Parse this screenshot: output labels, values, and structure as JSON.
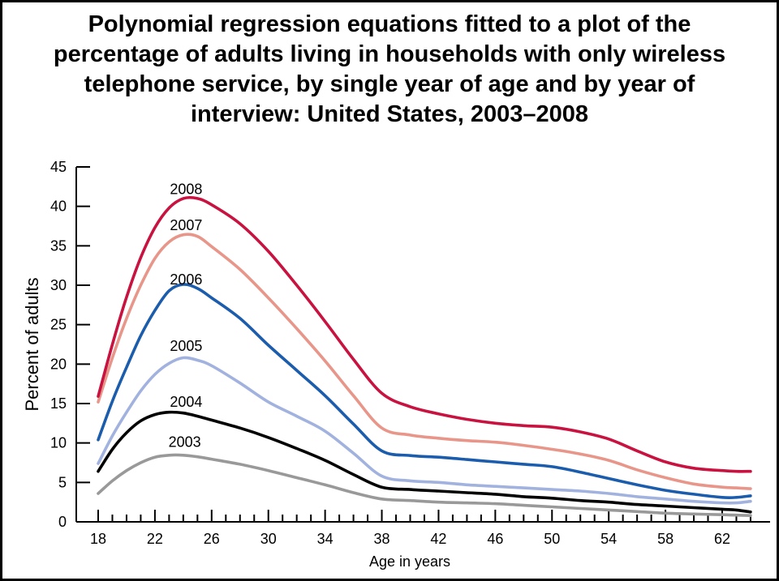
{
  "title": {
    "lines": [
      "Polynomial regression equations fitted to a plot of the",
      "percentage of adults living in households with only wireless",
      "telephone service, by single year of age and by year of",
      "interview: United States, 2003–2008"
    ]
  },
  "chart_data": {
    "type": "line",
    "title": "Polynomial regression equations fitted to a plot of the percentage of adults living in households with only wireless telephone service, by single year of age and by year of interview: United States, 2003–2008",
    "xlabel": "Age in years",
    "ylabel": "Percent of adults",
    "xlim": [
      18,
      64
    ],
    "ylim": [
      0,
      45
    ],
    "grid": false,
    "legend_position": "inline-labels-above-curves",
    "y_ticks": [
      0,
      5,
      10,
      15,
      20,
      25,
      30,
      35,
      40,
      45
    ],
    "x_major_ticks": [
      18,
      22,
      26,
      30,
      34,
      38,
      42,
      46,
      50,
      54,
      58,
      62
    ],
    "x_minor_tick_step": 1,
    "x": [
      18,
      19,
      20,
      21,
      22,
      23,
      24,
      25,
      26,
      28,
      30,
      32,
      34,
      36,
      38,
      40,
      42,
      44,
      46,
      48,
      50,
      52,
      54,
      56,
      58,
      60,
      62,
      63,
      64
    ],
    "series": [
      {
        "name": "2008",
        "color": "#C81240",
        "label_age": 24.2,
        "label_value": 42.2,
        "values": [
          15.9,
          22.5,
          28.5,
          33.5,
          37.3,
          39.8,
          41.0,
          41.0,
          40.2,
          37.8,
          34.3,
          30.0,
          25.4,
          20.6,
          16.3,
          14.6,
          13.7,
          13.0,
          12.5,
          12.2,
          12.0,
          11.4,
          10.5,
          9.0,
          7.6,
          6.8,
          6.5,
          6.4,
          6.4
        ]
      },
      {
        "name": "2007",
        "color": "#E89689",
        "label_age": 24.2,
        "label_value": 37.6,
        "values": [
          15.2,
          20.8,
          25.8,
          30.0,
          33.4,
          35.5,
          36.4,
          36.2,
          34.9,
          32.0,
          28.4,
          24.5,
          20.4,
          16.0,
          11.9,
          11.0,
          10.6,
          10.3,
          10.1,
          9.7,
          9.2,
          8.6,
          7.8,
          6.6,
          5.6,
          4.8,
          4.4,
          4.3,
          4.2
        ]
      },
      {
        "name": "2006",
        "color": "#1B5DAC",
        "label_age": 24.2,
        "label_value": 30.7,
        "values": [
          10.4,
          15.3,
          19.6,
          23.6,
          26.8,
          29.3,
          30.1,
          29.6,
          28.4,
          25.8,
          22.4,
          19.2,
          16.0,
          12.4,
          9.0,
          8.4,
          8.2,
          7.9,
          7.6,
          7.3,
          7.0,
          6.3,
          5.5,
          4.7,
          4.0,
          3.5,
          3.1,
          3.1,
          3.3
        ]
      },
      {
        "name": "2005",
        "color": "#A2B2DF",
        "label_age": 24.2,
        "label_value": 22.3,
        "values": [
          7.4,
          10.9,
          13.9,
          16.6,
          18.7,
          20.1,
          20.8,
          20.5,
          19.8,
          17.6,
          15.2,
          13.4,
          11.5,
          8.7,
          5.8,
          5.2,
          5.0,
          4.7,
          4.5,
          4.3,
          4.1,
          3.9,
          3.6,
          3.2,
          2.9,
          2.6,
          2.4,
          2.4,
          2.6
        ]
      },
      {
        "name": "2004",
        "color": "#000000",
        "label_age": 24.2,
        "label_value": 15.2,
        "values": [
          6.4,
          9.2,
          11.3,
          12.8,
          13.6,
          13.9,
          13.8,
          13.4,
          12.9,
          11.9,
          10.7,
          9.3,
          7.8,
          6.0,
          4.4,
          4.1,
          3.9,
          3.7,
          3.5,
          3.2,
          3.0,
          2.7,
          2.5,
          2.2,
          2.0,
          1.8,
          1.6,
          1.5,
          1.25
        ]
      },
      {
        "name": "2003",
        "color": "#999999",
        "label_age": 24.1,
        "label_value": 10.1,
        "values": [
          3.6,
          5.2,
          6.5,
          7.5,
          8.2,
          8.45,
          8.45,
          8.25,
          7.95,
          7.3,
          6.5,
          5.6,
          4.7,
          3.7,
          2.9,
          2.7,
          2.5,
          2.4,
          2.3,
          2.1,
          1.9,
          1.7,
          1.5,
          1.3,
          1.1,
          1.0,
          0.9,
          0.85,
          0.8
        ]
      }
    ]
  }
}
